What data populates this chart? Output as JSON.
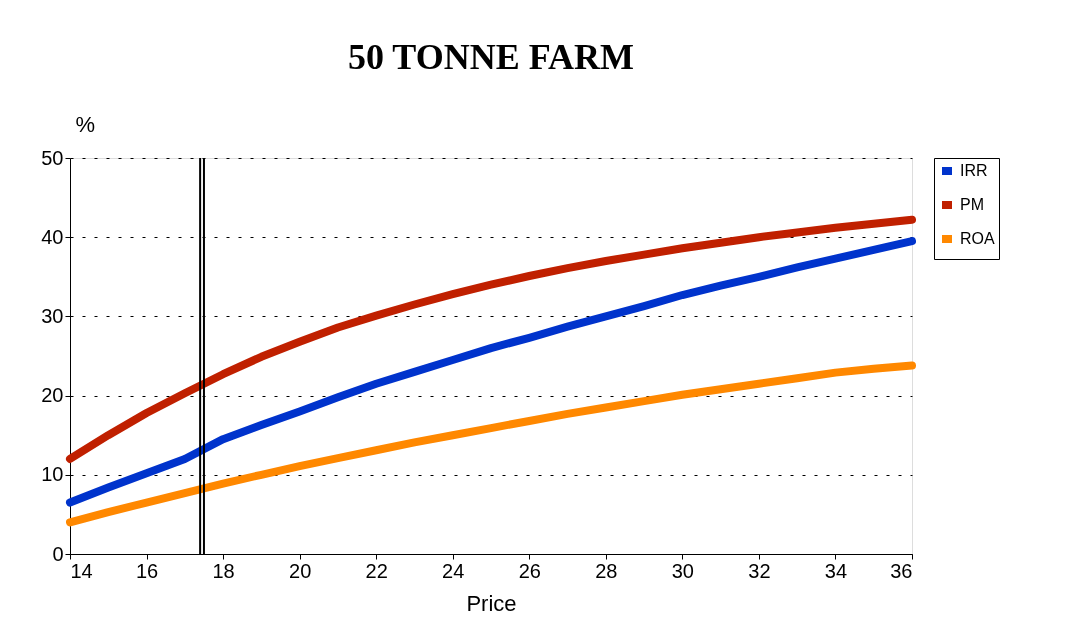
{
  "chart_data": {
    "type": "line",
    "title": "50 TONNE FARM",
    "xlabel": "Price",
    "ylabel": "%",
    "x": [
      14,
      15,
      16,
      17,
      18,
      19,
      20,
      21,
      22,
      23,
      24,
      25,
      26,
      27,
      28,
      29,
      30,
      31,
      32,
      33,
      34,
      35,
      36
    ],
    "series": [
      {
        "name": "IRR",
        "color": "#0033cc",
        "values": [
          6.5,
          8.4,
          10.2,
          12,
          14.5,
          16.3,
          18,
          19.8,
          21.5,
          23,
          24.5,
          26,
          27.3,
          28.7,
          30,
          31.3,
          32.7,
          33.9,
          35,
          36.2,
          37.3,
          38.4,
          39.5
        ]
      },
      {
        "name": "PM",
        "color": "#c02000",
        "values": [
          12,
          15,
          17.8,
          20.3,
          22.7,
          24.9,
          26.8,
          28.6,
          30.1,
          31.5,
          32.8,
          34,
          35.1,
          36.1,
          37,
          37.8,
          38.6,
          39.3,
          40,
          40.6,
          41.2,
          41.7,
          42.2
        ]
      },
      {
        "name": "ROA",
        "color": "#ff8800",
        "values": [
          4,
          5.3,
          6.5,
          7.7,
          8.9,
          10,
          11.1,
          12.1,
          13.1,
          14.1,
          15,
          15.9,
          16.8,
          17.7,
          18.5,
          19.3,
          20.1,
          20.8,
          21.5,
          22.2,
          22.9,
          23.4,
          23.8
        ]
      }
    ],
    "xlim": [
      14,
      36
    ],
    "xticks": [
      14,
      16,
      18,
      20,
      22,
      24,
      26,
      28,
      30,
      32,
      34,
      36
    ],
    "ylim": [
      0,
      50
    ],
    "yticks": [
      0,
      10,
      20,
      30,
      40,
      50
    ],
    "ref_lines": [
      {
        "axis": "x",
        "value": 17.4,
        "color": "#000000"
      },
      {
        "axis": "x",
        "value": 17.5,
        "color": "#000000"
      }
    ],
    "grid": "y",
    "legend": "right",
    "line_style": "solid"
  }
}
